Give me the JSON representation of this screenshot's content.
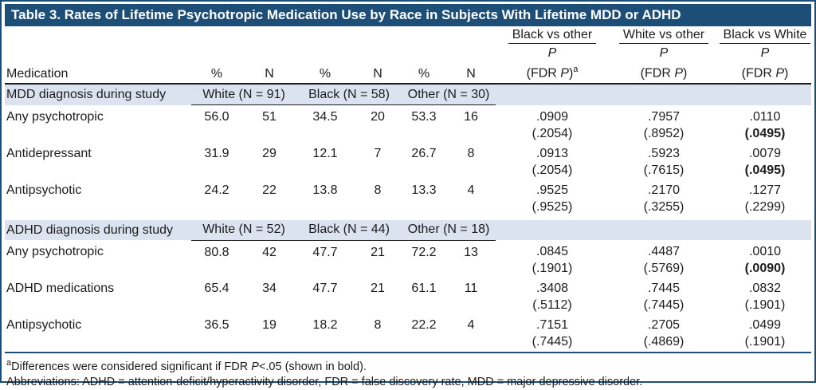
{
  "title": "Table 3. Rates of Lifetime Psychotropic Medication Use by Race in Subjects With Lifetime MDD or ADHD",
  "colors": {
    "navy": "#1d4e78",
    "band": "#dbe3f0",
    "rule": "#1e1e1e"
  },
  "header": {
    "medication_label": "Medication",
    "pct_label": "%",
    "n_label": "N",
    "p_symbol": "P",
    "fdr_prefix": "(FDR ",
    "fdr_suffix": ")",
    "comparisons": [
      {
        "label": "Black vs other",
        "sup": "a"
      },
      {
        "label": "White vs other",
        "sup": ""
      },
      {
        "label": "Black vs White",
        "sup": ""
      }
    ]
  },
  "groups": [
    {
      "name": "MDD diagnosis during study",
      "cols": [
        "White (N = 91)",
        "Black (N = 58)",
        "Other (N = 30)"
      ],
      "rows": [
        {
          "med": "Any psychotropic",
          "cells": [
            "56.0",
            "51",
            "34.5",
            "20",
            "53.3",
            "16"
          ],
          "p": [
            {
              "v": ".0909",
              "f": "(.2054)",
              "bold": false
            },
            {
              "v": ".7957",
              "f": "(.8952)",
              "bold": false
            },
            {
              "v": ".0110",
              "f": "(.0495)",
              "bold": true
            }
          ]
        },
        {
          "med": "Antidepressant",
          "cells": [
            "31.9",
            "29",
            "12.1",
            "7",
            "26.7",
            "8"
          ],
          "p": [
            {
              "v": ".0913",
              "f": "(.2054)",
              "bold": false
            },
            {
              "v": ".5923",
              "f": "(.7615)",
              "bold": false
            },
            {
              "v": ".0079",
              "f": "(.0495)",
              "bold": true
            }
          ]
        },
        {
          "med": "Antipsychotic",
          "cells": [
            "24.2",
            "22",
            "13.8",
            "8",
            "13.3",
            "4"
          ],
          "p": [
            {
              "v": ".9525",
              "f": "(.9525)",
              "bold": false
            },
            {
              "v": ".2170",
              "f": "(.3255)",
              "bold": false
            },
            {
              "v": ".1277",
              "f": "(.2299)",
              "bold": false
            }
          ]
        }
      ]
    },
    {
      "name": "ADHD diagnosis during study",
      "cols": [
        "White (N = 52)",
        "Black (N = 44)",
        "Other (N = 18)"
      ],
      "rows": [
        {
          "med": "Any psychotropic",
          "cells": [
            "80.8",
            "42",
            "47.7",
            "21",
            "72.2",
            "13"
          ],
          "p": [
            {
              "v": ".0845",
              "f": "(.1901)",
              "bold": false
            },
            {
              "v": ".4487",
              "f": "(.5769)",
              "bold": false
            },
            {
              "v": ".0010",
              "f": "(.0090)",
              "bold": true
            }
          ]
        },
        {
          "med": "ADHD medications",
          "cells": [
            "65.4",
            "34",
            "47.7",
            "21",
            "61.1",
            "11"
          ],
          "p": [
            {
              "v": ".3408",
              "f": "(.5112)",
              "bold": false
            },
            {
              "v": ".7445",
              "f": "(.7445)",
              "bold": false
            },
            {
              "v": ".0832",
              "f": "(.1901)",
              "bold": false
            }
          ]
        },
        {
          "med": "Antipsychotic",
          "cells": [
            "36.5",
            "19",
            "18.2",
            "8",
            "22.2",
            "4"
          ],
          "p": [
            {
              "v": ".7151",
              "f": "(.7445)",
              "bold": false
            },
            {
              "v": ".2705",
              "f": "(.4869)",
              "bold": false
            },
            {
              "v": ".0499",
              "f": "(.1901)",
              "bold": false
            }
          ]
        }
      ]
    }
  ],
  "footnotes": [
    {
      "segments": [
        {
          "sup": "a"
        },
        "Differences were considered significant if FDR ",
        {
          "i": "P"
        },
        "<.05 (shown in bold)."
      ]
    },
    {
      "segments": [
        "Abbreviations: ADHD = attention-deficit/hyperactivity disorder, FDR = false discovery rate, MDD = major depressive disorder."
      ]
    }
  ]
}
